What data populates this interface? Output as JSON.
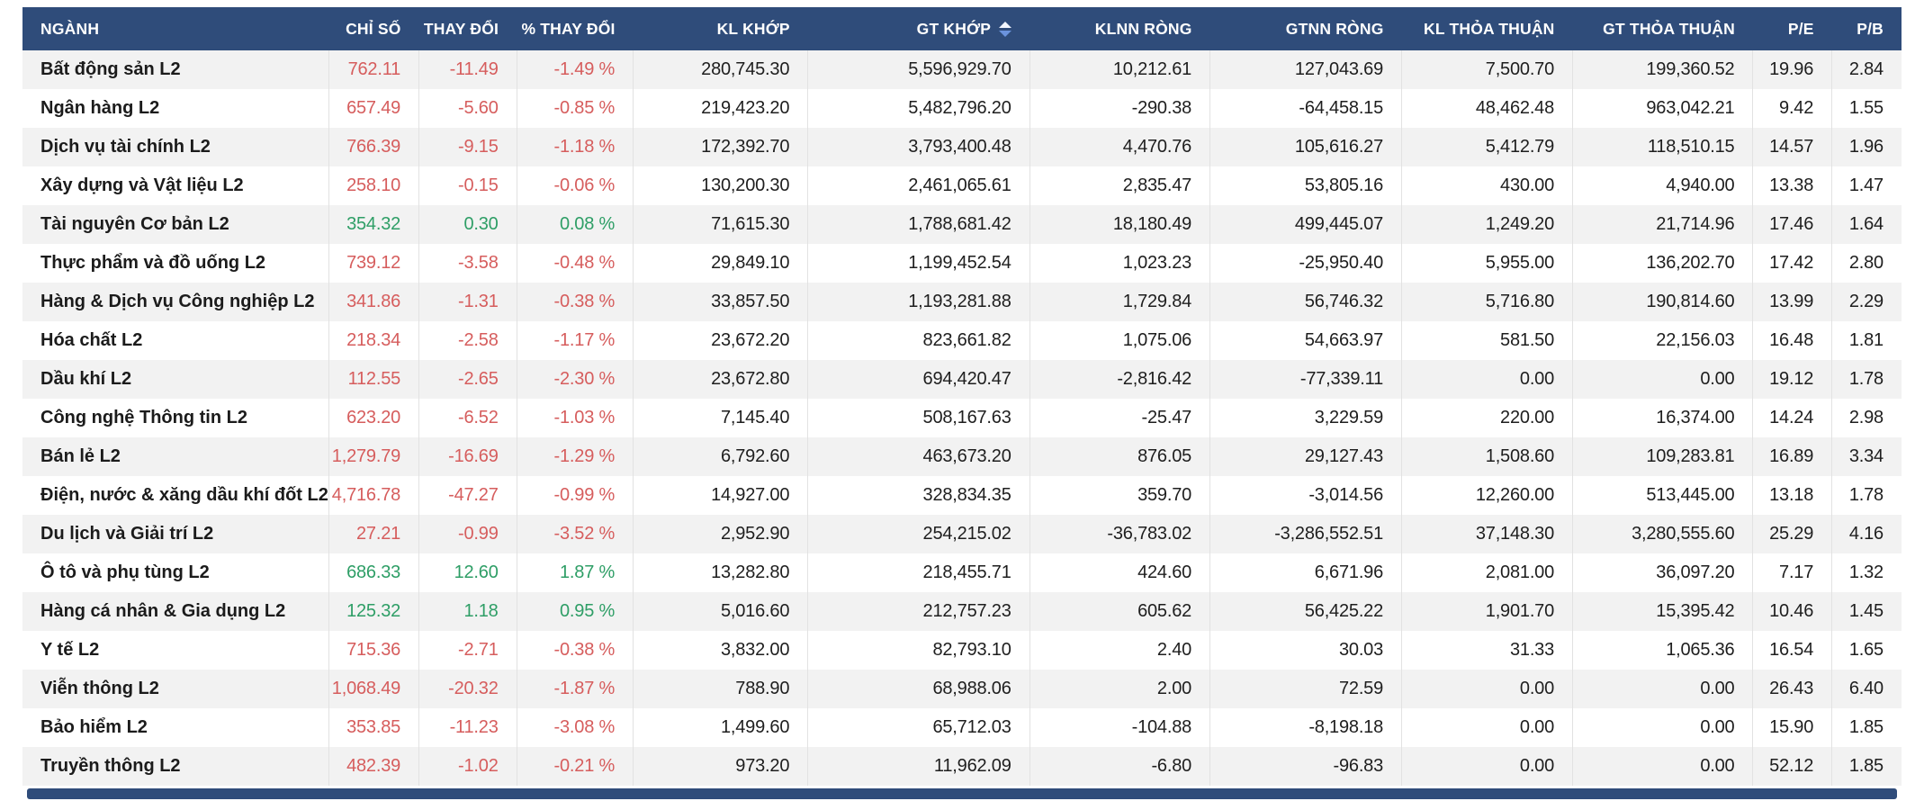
{
  "colors": {
    "header_bg": "#2f4c7a",
    "down": "#d65d5d",
    "up": "#2e9e66",
    "row_stripe": "#f2f2f2"
  },
  "table": {
    "sort_indicator_column": "GT KHỚP",
    "columns": [
      {
        "key": "name",
        "label": "NGÀNH"
      },
      {
        "key": "index",
        "label": "CHỈ SỐ"
      },
      {
        "key": "change",
        "label": "THAY ĐỔI"
      },
      {
        "key": "change_pct",
        "label": "% THAY ĐỔI"
      },
      {
        "key": "matched_volume",
        "label": "KL KHỚP"
      },
      {
        "key": "matched_value",
        "label": "GT KHỚP"
      },
      {
        "key": "foreign_net_volume",
        "label": "KLNN RÒNG"
      },
      {
        "key": "foreign_net_value",
        "label": "GTNN RÒNG"
      },
      {
        "key": "put_through_volume",
        "label": "KL THỎA THUẬN"
      },
      {
        "key": "put_through_value",
        "label": "GT THỎA THUẬN"
      },
      {
        "key": "pe",
        "label": "P/E"
      },
      {
        "key": "pb",
        "label": "P/B"
      }
    ],
    "rows": [
      {
        "name": "Bất động sản L2",
        "index": "762.11",
        "change": "-11.49",
        "change_pct": "-1.49 %",
        "matched_volume": "280,745.30",
        "matched_value": "5,596,929.70",
        "foreign_net_volume": "10,212.61",
        "foreign_net_value": "127,043.69",
        "put_through_volume": "7,500.70",
        "put_through_value": "199,360.52",
        "pe": "19.96",
        "pb": "2.84",
        "trend": "down"
      },
      {
        "name": "Ngân hàng L2",
        "index": "657.49",
        "change": "-5.60",
        "change_pct": "-0.85 %",
        "matched_volume": "219,423.20",
        "matched_value": "5,482,796.20",
        "foreign_net_volume": "-290.38",
        "foreign_net_value": "-64,458.15",
        "put_through_volume": "48,462.48",
        "put_through_value": "963,042.21",
        "pe": "9.42",
        "pb": "1.55",
        "trend": "down"
      },
      {
        "name": "Dịch vụ tài chính L2",
        "index": "766.39",
        "change": "-9.15",
        "change_pct": "-1.18 %",
        "matched_volume": "172,392.70",
        "matched_value": "3,793,400.48",
        "foreign_net_volume": "4,470.76",
        "foreign_net_value": "105,616.27",
        "put_through_volume": "5,412.79",
        "put_through_value": "118,510.15",
        "pe": "14.57",
        "pb": "1.96",
        "trend": "down"
      },
      {
        "name": "Xây dựng và Vật liệu L2",
        "index": "258.10",
        "change": "-0.15",
        "change_pct": "-0.06 %",
        "matched_volume": "130,200.30",
        "matched_value": "2,461,065.61",
        "foreign_net_volume": "2,835.47",
        "foreign_net_value": "53,805.16",
        "put_through_volume": "430.00",
        "put_through_value": "4,940.00",
        "pe": "13.38",
        "pb": "1.47",
        "trend": "down"
      },
      {
        "name": "Tài nguyên Cơ bản L2",
        "index": "354.32",
        "change": "0.30",
        "change_pct": "0.08 %",
        "matched_volume": "71,615.30",
        "matched_value": "1,788,681.42",
        "foreign_net_volume": "18,180.49",
        "foreign_net_value": "499,445.07",
        "put_through_volume": "1,249.20",
        "put_through_value": "21,714.96",
        "pe": "17.46",
        "pb": "1.64",
        "trend": "up"
      },
      {
        "name": "Thực phẩm và đồ uống L2",
        "index": "739.12",
        "change": "-3.58",
        "change_pct": "-0.48 %",
        "matched_volume": "29,849.10",
        "matched_value": "1,199,452.54",
        "foreign_net_volume": "1,023.23",
        "foreign_net_value": "-25,950.40",
        "put_through_volume": "5,955.00",
        "put_through_value": "136,202.70",
        "pe": "17.42",
        "pb": "2.80",
        "trend": "down"
      },
      {
        "name": "Hàng & Dịch vụ Công nghiệp L2",
        "index": "341.86",
        "change": "-1.31",
        "change_pct": "-0.38 %",
        "matched_volume": "33,857.50",
        "matched_value": "1,193,281.88",
        "foreign_net_volume": "1,729.84",
        "foreign_net_value": "56,746.32",
        "put_through_volume": "5,716.80",
        "put_through_value": "190,814.60",
        "pe": "13.99",
        "pb": "2.29",
        "trend": "down"
      },
      {
        "name": "Hóa chất L2",
        "index": "218.34",
        "change": "-2.58",
        "change_pct": "-1.17 %",
        "matched_volume": "23,672.20",
        "matched_value": "823,661.82",
        "foreign_net_volume": "1,075.06",
        "foreign_net_value": "54,663.97",
        "put_through_volume": "581.50",
        "put_through_value": "22,156.03",
        "pe": "16.48",
        "pb": "1.81",
        "trend": "down"
      },
      {
        "name": "Dầu khí L2",
        "index": "112.55",
        "change": "-2.65",
        "change_pct": "-2.30 %",
        "matched_volume": "23,672.80",
        "matched_value": "694,420.47",
        "foreign_net_volume": "-2,816.42",
        "foreign_net_value": "-77,339.11",
        "put_through_volume": "0.00",
        "put_through_value": "0.00",
        "pe": "19.12",
        "pb": "1.78",
        "trend": "down"
      },
      {
        "name": "Công nghệ Thông tin L2",
        "index": "623.20",
        "change": "-6.52",
        "change_pct": "-1.03 %",
        "matched_volume": "7,145.40",
        "matched_value": "508,167.63",
        "foreign_net_volume": "-25.47",
        "foreign_net_value": "3,229.59",
        "put_through_volume": "220.00",
        "put_through_value": "16,374.00",
        "pe": "14.24",
        "pb": "2.98",
        "trend": "down"
      },
      {
        "name": "Bán lẻ L2",
        "index": "1,279.79",
        "change": "-16.69",
        "change_pct": "-1.29 %",
        "matched_volume": "6,792.60",
        "matched_value": "463,673.20",
        "foreign_net_volume": "876.05",
        "foreign_net_value": "29,127.43",
        "put_through_volume": "1,508.60",
        "put_through_value": "109,283.81",
        "pe": "16.89",
        "pb": "3.34",
        "trend": "down"
      },
      {
        "name": "Điện, nước & xăng dầu khí đốt L2",
        "index": "4,716.78",
        "change": "-47.27",
        "change_pct": "-0.99 %",
        "matched_volume": "14,927.00",
        "matched_value": "328,834.35",
        "foreign_net_volume": "359.70",
        "foreign_net_value": "-3,014.56",
        "put_through_volume": "12,260.00",
        "put_through_value": "513,445.00",
        "pe": "13.18",
        "pb": "1.78",
        "trend": "down"
      },
      {
        "name": "Du lịch và Giải trí L2",
        "index": "27.21",
        "change": "-0.99",
        "change_pct": "-3.52 %",
        "matched_volume": "2,952.90",
        "matched_value": "254,215.02",
        "foreign_net_volume": "-36,783.02",
        "foreign_net_value": "-3,286,552.51",
        "put_through_volume": "37,148.30",
        "put_through_value": "3,280,555.60",
        "pe": "25.29",
        "pb": "4.16",
        "trend": "down"
      },
      {
        "name": "Ô tô và phụ tùng L2",
        "index": "686.33",
        "change": "12.60",
        "change_pct": "1.87 %",
        "matched_volume": "13,282.80",
        "matched_value": "218,455.71",
        "foreign_net_volume": "424.60",
        "foreign_net_value": "6,671.96",
        "put_through_volume": "2,081.00",
        "put_through_value": "36,097.20",
        "pe": "7.17",
        "pb": "1.32",
        "trend": "up"
      },
      {
        "name": "Hàng cá nhân & Gia dụng L2",
        "index": "125.32",
        "change": "1.18",
        "change_pct": "0.95 %",
        "matched_volume": "5,016.60",
        "matched_value": "212,757.23",
        "foreign_net_volume": "605.62",
        "foreign_net_value": "56,425.22",
        "put_through_volume": "1,901.70",
        "put_through_value": "15,395.42",
        "pe": "10.46",
        "pb": "1.45",
        "trend": "up"
      },
      {
        "name": "Y tế L2",
        "index": "715.36",
        "change": "-2.71",
        "change_pct": "-0.38 %",
        "matched_volume": "3,832.00",
        "matched_value": "82,793.10",
        "foreign_net_volume": "2.40",
        "foreign_net_value": "30.03",
        "put_through_volume": "31.33",
        "put_through_value": "1,065.36",
        "pe": "16.54",
        "pb": "1.65",
        "trend": "down"
      },
      {
        "name": "Viễn thông L2",
        "index": "1,068.49",
        "change": "-20.32",
        "change_pct": "-1.87 %",
        "matched_volume": "788.90",
        "matched_value": "68,988.06",
        "foreign_net_volume": "2.00",
        "foreign_net_value": "72.59",
        "put_through_volume": "0.00",
        "put_through_value": "0.00",
        "pe": "26.43",
        "pb": "6.40",
        "trend": "down"
      },
      {
        "name": "Bảo hiểm L2",
        "index": "353.85",
        "change": "-11.23",
        "change_pct": "-3.08 %",
        "matched_volume": "1,499.60",
        "matched_value": "65,712.03",
        "foreign_net_volume": "-104.88",
        "foreign_net_value": "-8,198.18",
        "put_through_volume": "0.00",
        "put_through_value": "0.00",
        "pe": "15.90",
        "pb": "1.85",
        "trend": "down"
      },
      {
        "name": "Truyền thông L2",
        "index": "482.39",
        "change": "-1.02",
        "change_pct": "-0.21 %",
        "matched_volume": "973.20",
        "matched_value": "11,962.09",
        "foreign_net_volume": "-6.80",
        "foreign_net_value": "-96.83",
        "put_through_volume": "0.00",
        "put_through_value": "0.00",
        "pe": "52.12",
        "pb": "1.85",
        "trend": "down"
      }
    ]
  }
}
